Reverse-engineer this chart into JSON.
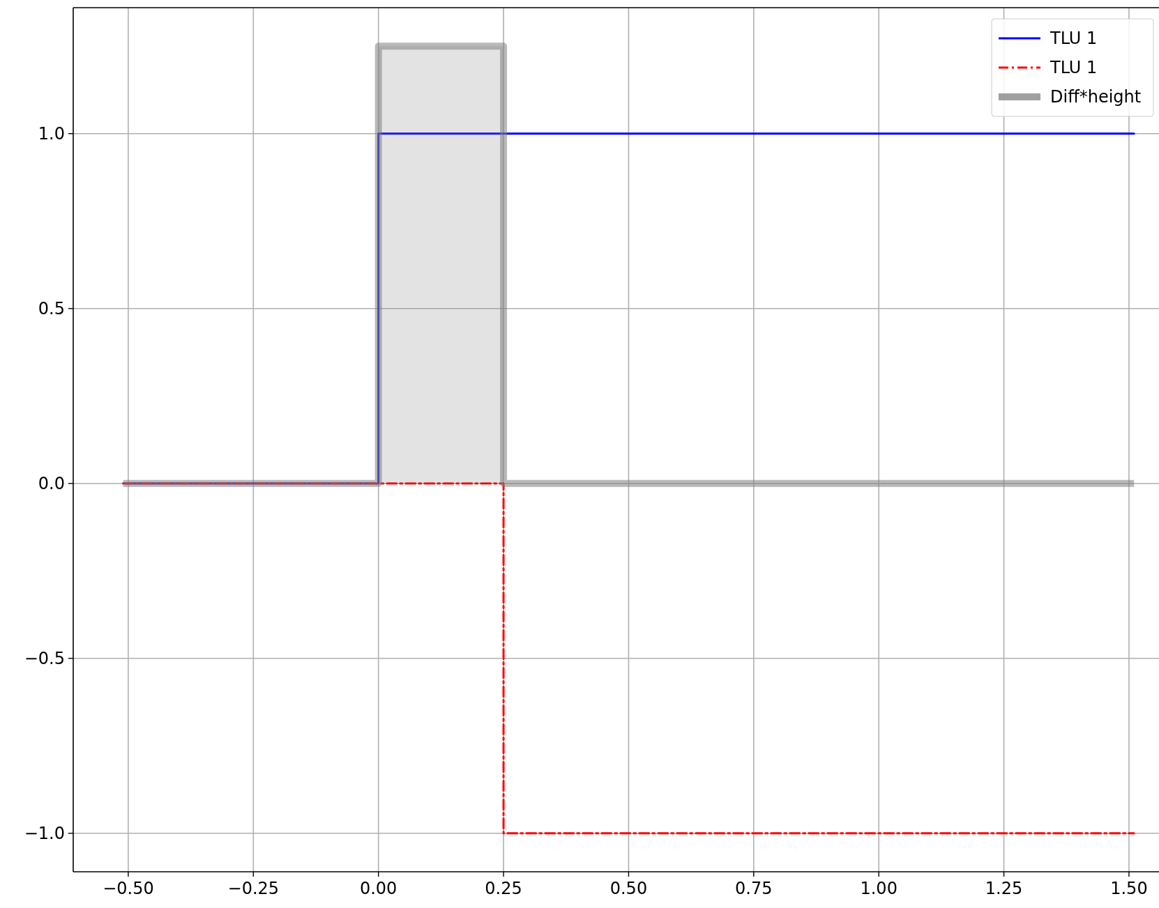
{
  "chart_data": {
    "type": "step",
    "xlim": [
      -0.61,
      1.56
    ],
    "ylim": [
      -1.11,
      1.36
    ],
    "xticks": [
      {
        "value": -0.5,
        "label": "−0.50"
      },
      {
        "value": -0.25,
        "label": "−0.25"
      },
      {
        "value": 0,
        "label": "0.00"
      },
      {
        "value": 0.25,
        "label": "0.25"
      },
      {
        "value": 0.5,
        "label": "0.50"
      },
      {
        "value": 0.75,
        "label": "0.75"
      },
      {
        "value": 1,
        "label": "1.00"
      },
      {
        "value": 1.25,
        "label": "1.25"
      },
      {
        "value": 1.5,
        "label": "1.50"
      }
    ],
    "yticks": [
      {
        "value": -1,
        "label": "−1.0"
      },
      {
        "value": -0.5,
        "label": "−0.5"
      },
      {
        "value": 0,
        "label": "0.0"
      },
      {
        "value": 0.5,
        "label": "0.5"
      },
      {
        "value": 1,
        "label": "1.0"
      }
    ],
    "grid": true,
    "legend": "top right",
    "series": [
      {
        "name": "TLU 1",
        "color": "#0000ff",
        "line_style": "solid",
        "x": [
          -0.51,
          0,
          1.51
        ],
        "values": [
          0,
          1,
          1
        ]
      },
      {
        "name": "TLU 1",
        "color": "#ff0000",
        "line_style": "dashed",
        "x": [
          -0.51,
          0.25,
          1.51
        ],
        "values": [
          0,
          -1,
          -1
        ]
      },
      {
        "name": "Diff*height",
        "type": "area",
        "color": "#808080",
        "line_style": "solid",
        "x": [
          -0.51,
          0,
          0.25,
          1.51
        ],
        "values": [
          0,
          1.25,
          0,
          0
        ]
      }
    ]
  }
}
